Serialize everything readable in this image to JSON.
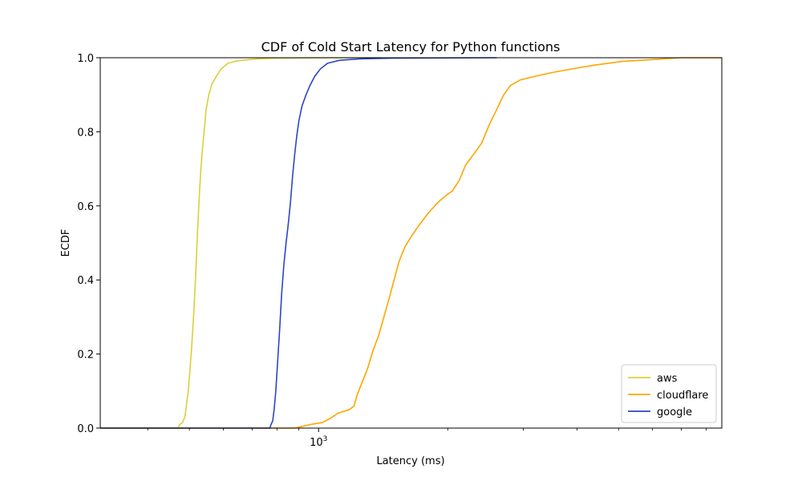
{
  "chart_data": {
    "type": "line",
    "title": "CDF of Cold Start Latency for Python functions",
    "xlabel": "Latency (ms)",
    "ylabel": "ECDF",
    "xscale": "log",
    "xlim": [
      310,
      8700
    ],
    "ylim": [
      0,
      1
    ],
    "yticks": [
      "0.0",
      "0.2",
      "0.4",
      "0.6",
      "0.8",
      "1.0"
    ],
    "xtick_major": {
      "value": 1000,
      "base": "10",
      "exp": "3"
    },
    "grid": false,
    "legend_position": "lower-right",
    "series": [
      {
        "name": "aws",
        "color": "#dbcf3b",
        "points": [
          [
            310,
            0
          ],
          [
            470,
            0
          ],
          [
            475,
            0.01
          ],
          [
            482,
            0.015
          ],
          [
            488,
            0.03
          ],
          [
            492,
            0.06
          ],
          [
            497,
            0.1
          ],
          [
            502,
            0.16
          ],
          [
            507,
            0.23
          ],
          [
            512,
            0.31
          ],
          [
            517,
            0.41
          ],
          [
            522,
            0.52
          ],
          [
            527,
            0.62
          ],
          [
            532,
            0.7
          ],
          [
            537,
            0.76
          ],
          [
            542,
            0.81
          ],
          [
            547,
            0.86
          ],
          [
            555,
            0.9
          ],
          [
            565,
            0.93
          ],
          [
            578,
            0.95
          ],
          [
            593,
            0.97
          ],
          [
            615,
            0.985
          ],
          [
            650,
            0.992
          ],
          [
            720,
            0.997
          ],
          [
            800,
            0.999
          ],
          [
            1000,
            1.0
          ],
          [
            1400,
            1.0
          ]
        ]
      },
      {
        "name": "cloudflare",
        "color": "#ffa500",
        "points": [
          [
            310,
            0
          ],
          [
            880,
            0
          ],
          [
            920,
            0.005
          ],
          [
            960,
            0.01
          ],
          [
            1020,
            0.015
          ],
          [
            1060,
            0.025
          ],
          [
            1110,
            0.04
          ],
          [
            1180,
            0.05
          ],
          [
            1210,
            0.06
          ],
          [
            1230,
            0.09
          ],
          [
            1260,
            0.12
          ],
          [
            1300,
            0.16
          ],
          [
            1340,
            0.21
          ],
          [
            1380,
            0.25
          ],
          [
            1420,
            0.3
          ],
          [
            1460,
            0.35
          ],
          [
            1500,
            0.4
          ],
          [
            1540,
            0.45
          ],
          [
            1590,
            0.49
          ],
          [
            1650,
            0.52
          ],
          [
            1720,
            0.55
          ],
          [
            1800,
            0.58
          ],
          [
            1900,
            0.61
          ],
          [
            1990,
            0.63
          ],
          [
            2050,
            0.64
          ],
          [
            2130,
            0.67
          ],
          [
            2200,
            0.71
          ],
          [
            2300,
            0.74
          ],
          [
            2400,
            0.77
          ],
          [
            2500,
            0.82
          ],
          [
            2600,
            0.86
          ],
          [
            2700,
            0.9
          ],
          [
            2800,
            0.925
          ],
          [
            2950,
            0.94
          ],
          [
            3200,
            0.95
          ],
          [
            3500,
            0.96
          ],
          [
            3900,
            0.97
          ],
          [
            4400,
            0.98
          ],
          [
            5100,
            0.99
          ],
          [
            6000,
            0.995
          ],
          [
            7000,
            1.0
          ],
          [
            8700,
            1.0
          ]
        ]
      },
      {
        "name": "google",
        "color": "#2d45c6",
        "points": [
          [
            310,
            0
          ],
          [
            770,
            0
          ],
          [
            775,
            0.01
          ],
          [
            782,
            0.02
          ],
          [
            788,
            0.05
          ],
          [
            795,
            0.1
          ],
          [
            803,
            0.18
          ],
          [
            812,
            0.27
          ],
          [
            820,
            0.36
          ],
          [
            830,
            0.44
          ],
          [
            840,
            0.5
          ],
          [
            850,
            0.55
          ],
          [
            860,
            0.61
          ],
          [
            870,
            0.68
          ],
          [
            880,
            0.74
          ],
          [
            890,
            0.79
          ],
          [
            900,
            0.83
          ],
          [
            915,
            0.87
          ],
          [
            935,
            0.9
          ],
          [
            955,
            0.925
          ],
          [
            980,
            0.95
          ],
          [
            1010,
            0.97
          ],
          [
            1050,
            0.985
          ],
          [
            1120,
            0.993
          ],
          [
            1250,
            0.997
          ],
          [
            1500,
            0.999
          ],
          [
            2600,
            1.0
          ]
        ]
      }
    ]
  }
}
